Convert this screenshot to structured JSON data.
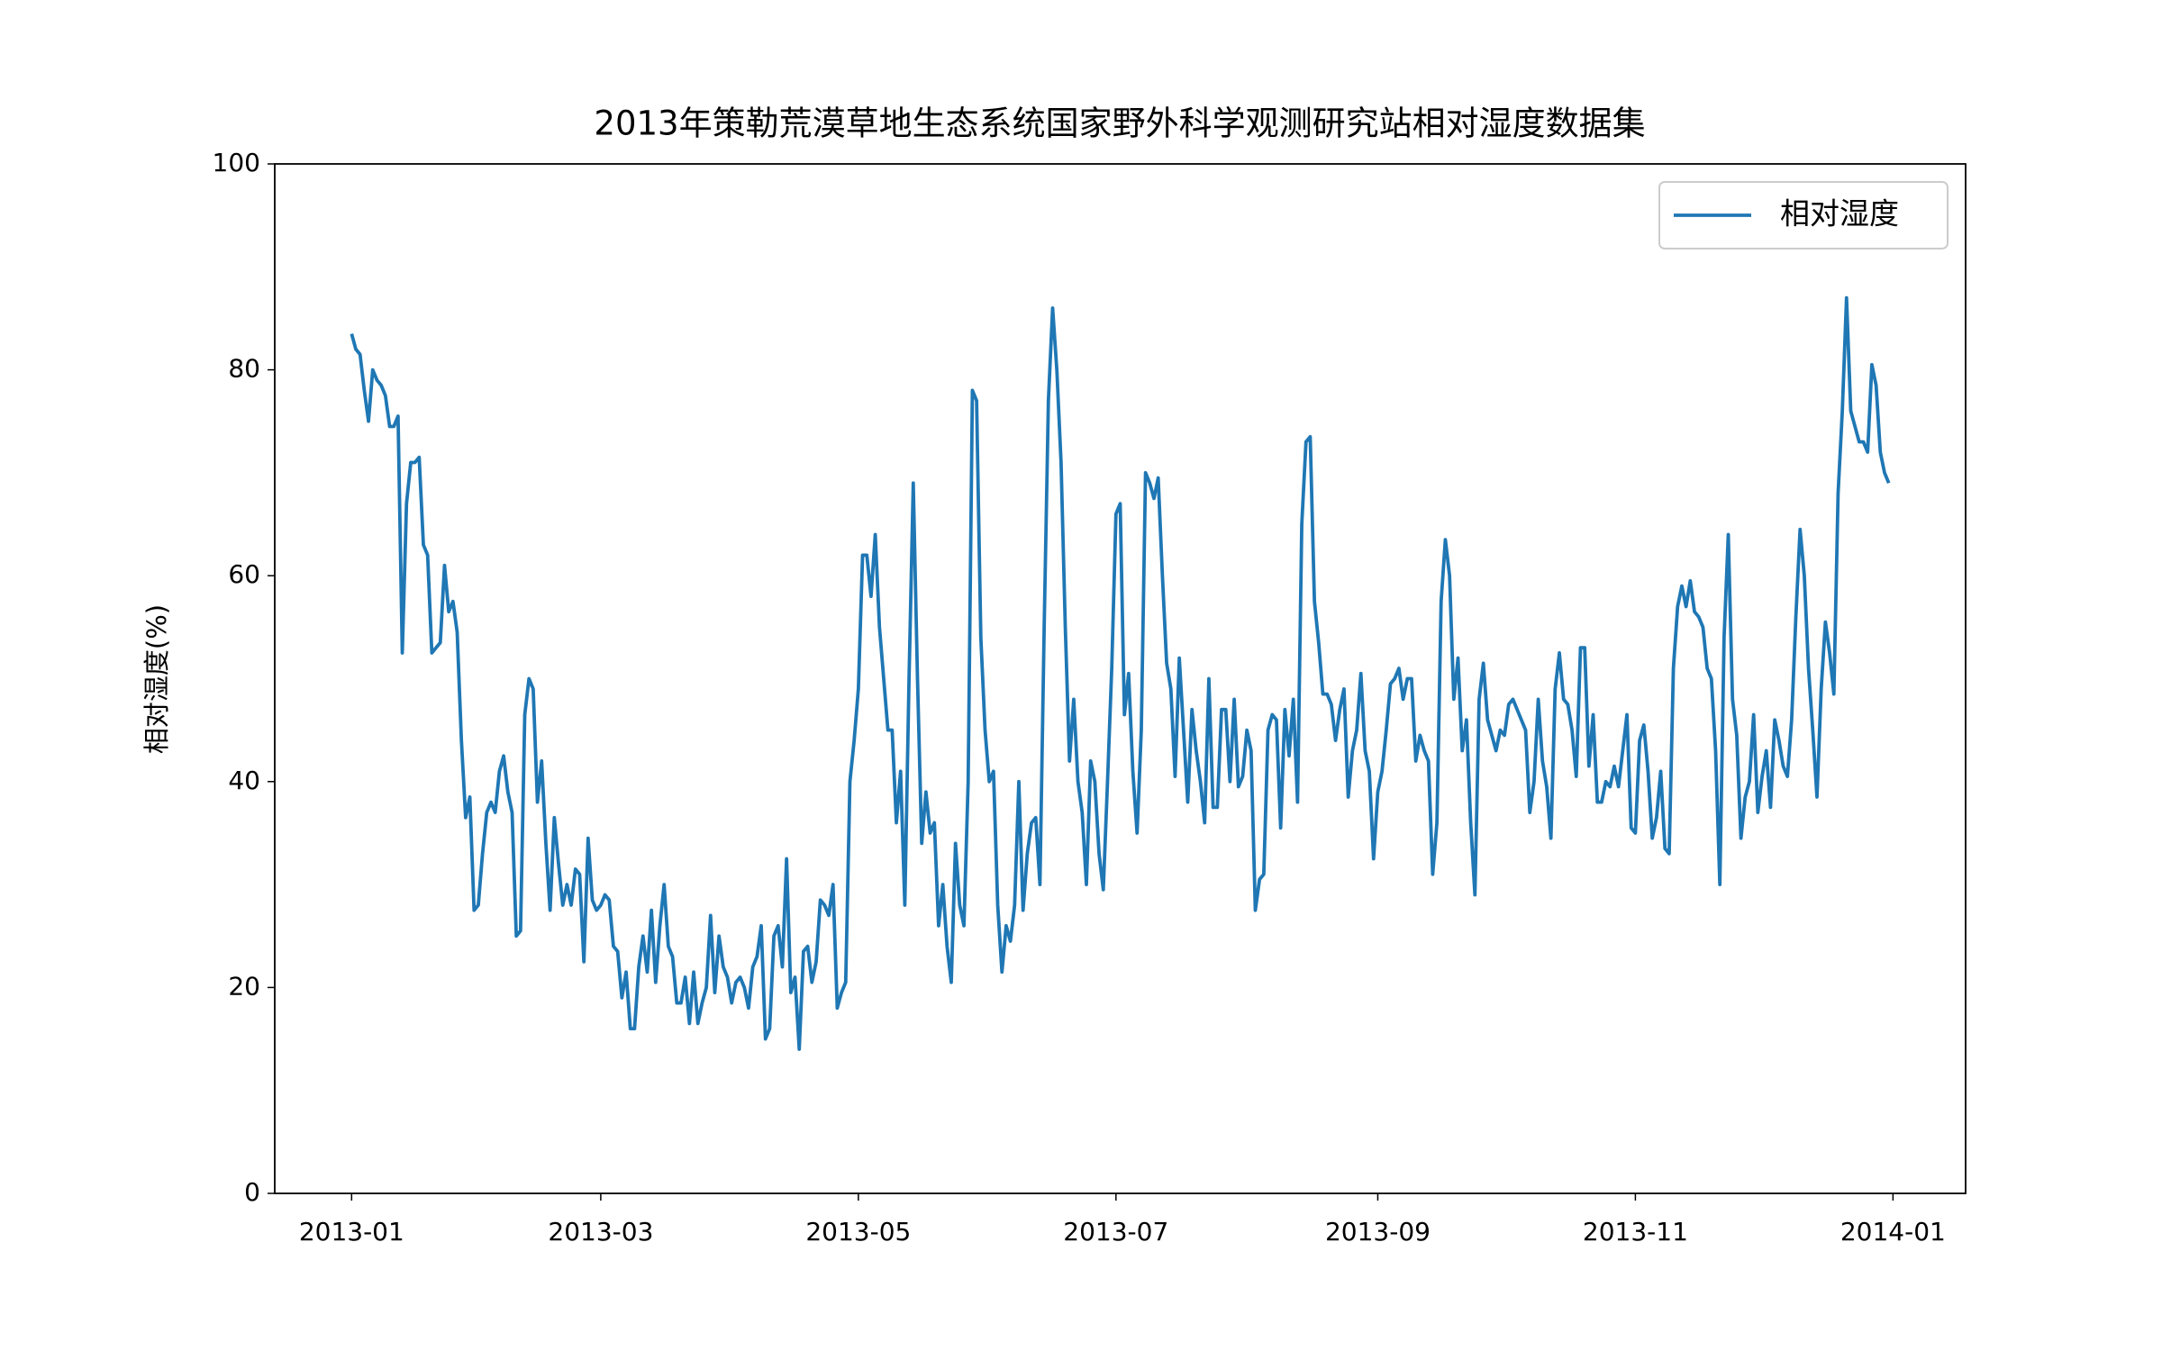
{
  "chart_data": {
    "type": "line",
    "title": "2013年策勒荒漠草地生态系统国家野外科学观测研究站相对湿度数据集",
    "ylabel": "相对湿度(%)",
    "x": [
      0,
      1,
      2,
      3,
      4,
      5,
      6,
      7,
      8,
      9,
      10,
      11,
      12,
      13,
      14,
      15,
      16,
      17,
      18,
      19,
      20,
      21,
      22,
      23,
      24,
      25,
      26,
      27,
      28,
      29,
      30,
      31,
      32,
      33,
      34,
      35,
      36,
      37,
      38,
      39,
      40,
      41,
      42,
      43,
      44,
      45,
      46,
      47,
      48,
      49,
      50,
      51,
      52,
      53,
      54,
      55,
      56,
      57,
      58,
      59,
      60,
      61,
      62,
      63,
      64,
      65,
      66,
      67,
      68,
      69,
      70,
      71,
      72,
      73,
      74,
      75,
      76,
      77,
      78,
      79,
      80,
      81,
      82,
      83,
      84,
      85,
      86,
      87,
      88,
      89,
      90,
      91,
      92,
      93,
      94,
      95,
      96,
      97,
      98,
      99,
      100,
      101,
      102,
      103,
      104,
      105,
      106,
      107,
      108,
      109,
      110,
      111,
      112,
      113,
      114,
      115,
      116,
      117,
      118,
      119,
      120,
      121,
      122,
      123,
      124,
      125,
      126,
      127,
      128,
      129,
      130,
      131,
      132,
      133,
      134,
      135,
      136,
      137,
      138,
      139,
      140,
      141,
      142,
      143,
      144,
      145,
      146,
      147,
      148,
      149,
      150,
      151,
      152,
      153,
      154,
      155,
      156,
      157,
      158,
      159,
      160,
      161,
      162,
      163,
      164,
      165,
      166,
      167,
      168,
      169,
      170,
      171,
      172,
      173,
      174,
      175,
      176,
      177,
      178,
      179,
      180,
      181,
      182,
      183,
      184,
      185,
      186,
      187,
      188,
      189,
      190,
      191,
      192,
      193,
      194,
      195,
      196,
      197,
      198,
      199,
      200,
      201,
      202,
      203,
      204,
      205,
      206,
      207,
      208,
      209,
      210,
      211,
      212,
      213,
      214,
      215,
      216,
      217,
      218,
      219,
      220,
      221,
      222,
      223,
      224,
      225,
      226,
      227,
      228,
      229,
      230,
      231,
      232,
      233,
      234,
      235,
      236,
      237,
      238,
      239,
      240,
      241,
      242,
      243,
      244,
      245,
      246,
      247,
      248,
      249,
      250,
      251,
      252,
      253,
      254,
      255,
      256,
      257,
      258,
      259,
      260,
      261,
      262,
      263,
      264,
      265,
      266,
      267,
      268,
      269,
      270,
      271,
      272,
      273,
      274,
      275,
      276,
      277,
      278,
      279,
      280,
      281,
      282,
      283,
      284,
      285,
      286,
      287,
      288,
      289,
      290,
      291,
      292,
      293,
      294,
      295,
      296,
      297,
      298,
      299,
      300,
      301,
      302,
      303,
      304,
      305,
      306,
      307,
      308,
      309,
      310,
      311,
      312,
      313,
      314,
      315,
      316,
      317,
      318,
      319,
      320,
      321,
      322,
      323,
      324,
      325,
      326,
      327,
      328,
      329,
      330,
      331,
      332,
      333,
      334,
      335,
      336,
      337,
      338,
      339,
      340,
      341,
      342,
      343,
      344,
      345,
      346,
      347,
      348,
      349,
      350,
      351,
      352,
      353,
      354,
      355,
      356,
      357,
      358,
      359,
      360,
      361,
      362,
      363,
      364
    ],
    "series": [
      {
        "name": "相对湿度",
        "color": "#1f77b4",
        "values": [
          83.5,
          82,
          81.5,
          78,
          75,
          80,
          79,
          78.5,
          77.5,
          74.5,
          74.5,
          75.5,
          52.5,
          67,
          71,
          71,
          71.5,
          63,
          62,
          52.5,
          53,
          53.5,
          61,
          56.5,
          57.5,
          54.5,
          44,
          36.5,
          38.5,
          27.5,
          28,
          33,
          37,
          38,
          37,
          41,
          42.5,
          39,
          37,
          25,
          25.5,
          46.5,
          50,
          49,
          38,
          42,
          34,
          27.5,
          36.5,
          32,
          28,
          30,
          28,
          31.5,
          31,
          22.5,
          34.5,
          28.5,
          27.5,
          28,
          29,
          28.5,
          24,
          23.5,
          19,
          21.5,
          16,
          16,
          22,
          25,
          21.5,
          27.5,
          20.5,
          26,
          30,
          24,
          23,
          18.5,
          18.5,
          21,
          16.5,
          21.5,
          16.5,
          18.5,
          20,
          27,
          19.5,
          25,
          22,
          21,
          18.5,
          20.5,
          21,
          20,
          18,
          22,
          23,
          26,
          15,
          16,
          25,
          26,
          22,
          32.5,
          19.5,
          21,
          14,
          23.5,
          24,
          20.5,
          22.5,
          28.5,
          28,
          27,
          30,
          18,
          19.5,
          20.5,
          40,
          44,
          49,
          62,
          62,
          58,
          64,
          55,
          50,
          45,
          45,
          36,
          41,
          28,
          50,
          69,
          50,
          34,
          39,
          35,
          36,
          26,
          30,
          24,
          20.5,
          34,
          28,
          26,
          40,
          78,
          77,
          54,
          45,
          40,
          41,
          28,
          21.5,
          26,
          24.5,
          28,
          40,
          27.5,
          33,
          36,
          36.5,
          30,
          55,
          77,
          86,
          80,
          71,
          55,
          42,
          48,
          40,
          37,
          30,
          42,
          40,
          33,
          29.5,
          40,
          51,
          66,
          67,
          46.5,
          50.5,
          41,
          35,
          45,
          70,
          69,
          67.5,
          69.5,
          60,
          51.5,
          49,
          40.5,
          52,
          45,
          38,
          47,
          43,
          40,
          36,
          50,
          37.5,
          37.5,
          47,
          47,
          40,
          48,
          39.5,
          40.5,
          45,
          43,
          27.5,
          30.5,
          31,
          45,
          46.5,
          46,
          35.5,
          47,
          42.5,
          48,
          38,
          65,
          73,
          73.5,
          57.5,
          53.5,
          48.5,
          48.5,
          47.5,
          44,
          47,
          49,
          38.5,
          43,
          45,
          50.5,
          43,
          41,
          32.5,
          39,
          41,
          45,
          49.5,
          50,
          51,
          48,
          50,
          50,
          42,
          44.5,
          43,
          42,
          31,
          36,
          57.5,
          63.5,
          60,
          48,
          52,
          43,
          46,
          36,
          29,
          48,
          51.5,
          46,
          44.5,
          43,
          45,
          44.5,
          47.5,
          48,
          47,
          46,
          45,
          37,
          40,
          48,
          42,
          39.5,
          34.5,
          49,
          52.5,
          48,
          47.5,
          45,
          40.5,
          53,
          53,
          41.5,
          46.5,
          38,
          38,
          40,
          39.5,
          41.5,
          39.5,
          43,
          46.5,
          35.5,
          35,
          44,
          45.5,
          41,
          34.5,
          36.5,
          41,
          33.5,
          33,
          51,
          57,
          59,
          57,
          59.5,
          56.5,
          56,
          55,
          51,
          50,
          43,
          30,
          54,
          64,
          48,
          44.5,
          34.5,
          38.5,
          40,
          46.5,
          37,
          40.5,
          43,
          37.5,
          46,
          44,
          41.5,
          40.5,
          46,
          56,
          64.5,
          60,
          51,
          45,
          38.5,
          49,
          55.5,
          52.5,
          48.5,
          68,
          76,
          87,
          76,
          74.5,
          73,
          73,
          72,
          80.5,
          78.5,
          72,
          70,
          69
        ]
      }
    ],
    "xlim": [
      -18.2,
      382.2
    ],
    "xticks": [
      {
        "value": 0,
        "label": "2013-01"
      },
      {
        "value": 59,
        "label": "2013-03"
      },
      {
        "value": 120,
        "label": "2013-05"
      },
      {
        "value": 181,
        "label": "2013-07"
      },
      {
        "value": 243,
        "label": "2013-09"
      },
      {
        "value": 304,
        "label": "2013-11"
      },
      {
        "value": 365,
        "label": "2014-01"
      }
    ],
    "ylim": [
      0,
      100
    ],
    "yticks": [
      0,
      20,
      40,
      60,
      80,
      100
    ],
    "grid": false,
    "legend": "upper right"
  }
}
